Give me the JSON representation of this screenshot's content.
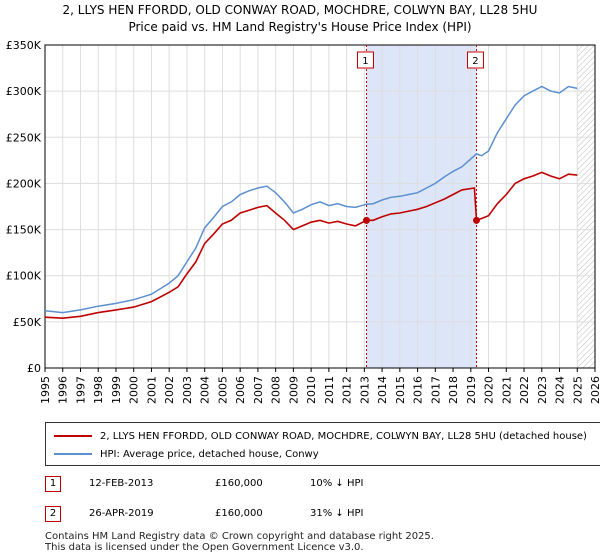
{
  "title_line1": "2, LLYS HEN FFORDD, OLD CONWAY ROAD, MOCHDRE, COLWYN BAY, LL28 5HU",
  "title_line2": "Price paid vs. HM Land Registry's House Price Index (HPI)",
  "legend": {
    "property": "2, LLYS HEN FFORDD, OLD CONWAY ROAD, MOCHDRE, COLWYN BAY, LL28 5HU (detached house)",
    "hpi": "HPI: Average price, detached house, Conwy"
  },
  "transactions": [
    {
      "num": "1",
      "date": "12-FEB-2013",
      "price": "£160,000",
      "delta": "10% ↓ HPI"
    },
    {
      "num": "2",
      "date": "26-APR-2019",
      "price": "£160,000",
      "delta": "31% ↓ HPI"
    }
  ],
  "footer_line1": "Contains HM Land Registry data © Crown copyright and database right 2025.",
  "footer_line2": "This data is licensed under the Open Government Licence v3.0.",
  "colors": {
    "property": "#c00000",
    "hpi": "#5b8fd0",
    "shade": "#dde6f8",
    "grid": "#dddddd"
  },
  "chart_data": {
    "type": "line",
    "xlim": [
      1995,
      2026
    ],
    "ylim": [
      0,
      350000
    ],
    "yticks": [
      0,
      50000,
      100000,
      150000,
      200000,
      250000,
      300000,
      350000
    ],
    "ytick_labels": [
      "£0",
      "£50K",
      "£100K",
      "£150K",
      "£200K",
      "£250K",
      "£300K",
      "£350K"
    ],
    "xticks": [
      1995,
      1996,
      1997,
      1998,
      1999,
      2000,
      2001,
      2002,
      2003,
      2004,
      2005,
      2006,
      2007,
      2008,
      2009,
      2010,
      2011,
      2012,
      2013,
      2014,
      2015,
      2016,
      2017,
      2018,
      2019,
      2020,
      2021,
      2022,
      2023,
      2024,
      2025,
      2026
    ],
    "shaded_range": [
      2013.12,
      2019.32
    ],
    "future_start": 2025.0,
    "markers": [
      {
        "label": "1",
        "x": 2013.12,
        "y": 160000
      },
      {
        "label": "2",
        "x": 2019.32,
        "y": 160000
      }
    ],
    "series": [
      {
        "name": "HPI: Average price, detached house, Conwy",
        "color": "#5b8fd0",
        "x": [
          1995,
          1996,
          1997,
          1998,
          1999,
          2000,
          2001,
          2002,
          2002.5,
          2003,
          2003.5,
          2004,
          2004.5,
          2005,
          2005.5,
          2006,
          2006.5,
          2007,
          2007.5,
          2008,
          2008.5,
          2009,
          2009.5,
          2010,
          2010.5,
          2011,
          2011.5,
          2012,
          2012.5,
          2013.12,
          2013.5,
          2014,
          2014.5,
          2015,
          2015.5,
          2016,
          2016.5,
          2017,
          2017.5,
          2018,
          2018.5,
          2019.32,
          2019.6,
          2020,
          2020.5,
          2021,
          2021.5,
          2022,
          2022.5,
          2023,
          2023.5,
          2024,
          2024.5,
          2025
        ],
        "y": [
          62000,
          60000,
          63000,
          67000,
          70000,
          74000,
          80000,
          92000,
          100000,
          115000,
          130000,
          152000,
          163000,
          175000,
          180000,
          188000,
          192000,
          195000,
          197000,
          190000,
          180000,
          168000,
          172000,
          177000,
          180000,
          176000,
          178000,
          175000,
          174000,
          177500,
          178000,
          182000,
          185000,
          186000,
          188000,
          190000,
          195000,
          200000,
          207000,
          213000,
          218000,
          232000,
          230000,
          235000,
          255000,
          270000,
          285000,
          295000,
          300000,
          305000,
          300000,
          298000,
          305000,
          303000
        ]
      },
      {
        "name": "2, LLYS HEN FFORDD, OLD CONWAY ROAD, MOCHDRE, COLWYN BAY, LL28 5HU (detached house)",
        "color": "#c00000",
        "x": [
          1995,
          1996,
          1997,
          1998,
          1999,
          2000,
          2001,
          2002,
          2002.5,
          2003,
          2003.5,
          2004,
          2004.5,
          2005,
          2005.5,
          2006,
          2006.5,
          2007,
          2007.5,
          2008,
          2008.5,
          2009,
          2009.5,
          2010,
          2010.5,
          2011,
          2011.5,
          2012,
          2012.5,
          2013.12,
          2013.5,
          2014,
          2014.5,
          2015,
          2015.5,
          2016,
          2016.5,
          2017,
          2017.5,
          2018,
          2018.5,
          2019.2,
          2019.32,
          2019.6,
          2020,
          2020.5,
          2021,
          2021.5,
          2022,
          2022.5,
          2023,
          2023.5,
          2024,
          2024.5,
          2025
        ],
        "y": [
          55000,
          54000,
          56000,
          60000,
          63000,
          66000,
          72000,
          82000,
          88000,
          102000,
          115000,
          135000,
          145000,
          156000,
          160000,
          168000,
          171000,
          174000,
          176000,
          168000,
          160000,
          150000,
          154000,
          158000,
          160000,
          157000,
          159000,
          156000,
          154000,
          160000,
          160000,
          164000,
          167000,
          168000,
          170000,
          172000,
          175000,
          179000,
          183000,
          188000,
          193000,
          195000,
          160000,
          162000,
          165000,
          178000,
          188000,
          200000,
          205000,
          208000,
          212000,
          208000,
          205000,
          210000,
          209000
        ]
      }
    ]
  }
}
